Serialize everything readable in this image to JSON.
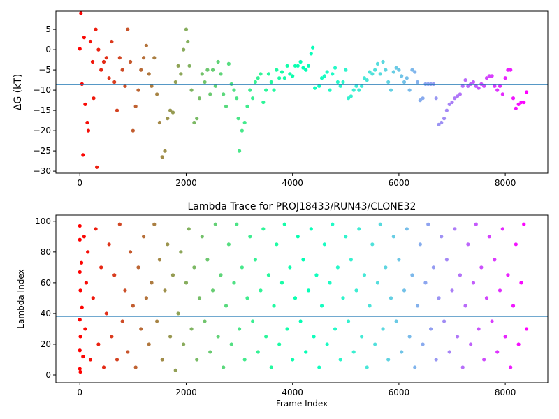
{
  "chart_data": [
    {
      "type": "scatter",
      "title": "",
      "xlabel": "",
      "ylabel": "ΔG (kT)",
      "xlim": [
        -450,
        8800
      ],
      "ylim": [
        -30.5,
        9.5
      ],
      "xticks": [
        0,
        2000,
        4000,
        6000,
        8000
      ],
      "yticks": [
        5,
        0,
        -5,
        -10,
        -15,
        -20,
        -25,
        -30
      ],
      "hline": -8.6,
      "hline_color": "#1f77b4",
      "colormap": "rainbow",
      "x_max": 8400,
      "points": [
        [
          0,
          0.2
        ],
        [
          20,
          9.0
        ],
        [
          40,
          -8.5
        ],
        [
          60,
          -26.0
        ],
        [
          80,
          3.0
        ],
        [
          100,
          -13.5
        ],
        [
          140,
          -18.0
        ],
        [
          160,
          -20.0
        ],
        [
          200,
          2.0
        ],
        [
          240,
          -3.0
        ],
        [
          260,
          -12.0
        ],
        [
          300,
          5.0
        ],
        [
          320,
          -29.0
        ],
        [
          350,
          0.0
        ],
        [
          400,
          -5.0
        ],
        [
          450,
          -3.0
        ],
        [
          500,
          -2.0
        ],
        [
          550,
          -7.0
        ],
        [
          600,
          2.0
        ],
        [
          650,
          -8.0
        ],
        [
          700,
          -15.0
        ],
        [
          750,
          -2.0
        ],
        [
          800,
          -5.0
        ],
        [
          850,
          -9.0
        ],
        [
          900,
          5.0
        ],
        [
          950,
          -3.0
        ],
        [
          1000,
          -20.0
        ],
        [
          1050,
          -14.0
        ],
        [
          1100,
          -10.0
        ],
        [
          1150,
          -5.0
        ],
        [
          1200,
          -2.0
        ],
        [
          1250,
          1.0
        ],
        [
          1300,
          -6.0
        ],
        [
          1350,
          -9.0
        ],
        [
          1400,
          -2.0
        ],
        [
          1450,
          -11.0
        ],
        [
          1500,
          -18.0
        ],
        [
          1550,
          -26.5
        ],
        [
          1600,
          -25.0
        ],
        [
          1650,
          -17.0
        ],
        [
          1700,
          -15.0
        ],
        [
          1750,
          -15.5
        ],
        [
          1800,
          -8.0
        ],
        [
          1850,
          -4.0
        ],
        [
          1900,
          -6.0
        ],
        [
          1950,
          0.0
        ],
        [
          2000,
          5.0
        ],
        [
          2030,
          2.0
        ],
        [
          2060,
          -4.0
        ],
        [
          2100,
          -10.0
        ],
        [
          2150,
          -18.0
        ],
        [
          2200,
          -17.0
        ],
        [
          2250,
          -12.0
        ],
        [
          2300,
          -6.0
        ],
        [
          2350,
          -8.0
        ],
        [
          2400,
          -5.0
        ],
        [
          2450,
          -11.0
        ],
        [
          2500,
          -5.0
        ],
        [
          2550,
          -9.0
        ],
        [
          2600,
          -3.0
        ],
        [
          2650,
          -6.0
        ],
        [
          2700,
          -11.0
        ],
        [
          2750,
          -14.0
        ],
        [
          2800,
          -3.5
        ],
        [
          2850,
          -8.5
        ],
        [
          2900,
          -10.0
        ],
        [
          2950,
          -12.0
        ],
        [
          2980,
          -17.0
        ],
        [
          3000,
          -25.0
        ],
        [
          3050,
          -20.0
        ],
        [
          3100,
          -18.0
        ],
        [
          3150,
          -14.0
        ],
        [
          3200,
          -10.0
        ],
        [
          3250,
          -12.0
        ],
        [
          3300,
          -8.0
        ],
        [
          3350,
          -7.0
        ],
        [
          3400,
          -6.0
        ],
        [
          3450,
          -13.0
        ],
        [
          3500,
          -10.0
        ],
        [
          3550,
          -6.0
        ],
        [
          3600,
          -8.0
        ],
        [
          3650,
          -10.0
        ],
        [
          3700,
          -5.0
        ],
        [
          3750,
          -7.0
        ],
        [
          3800,
          -5.5
        ],
        [
          3850,
          -7.0
        ],
        [
          3900,
          -4.0
        ],
        [
          3950,
          -6.0
        ],
        [
          4000,
          -6.5
        ],
        [
          4050,
          -4.0
        ],
        [
          4100,
          -4.0
        ],
        [
          4150,
          -3.0
        ],
        [
          4200,
          -4.5
        ],
        [
          4250,
          -5.0
        ],
        [
          4300,
          -4.0
        ],
        [
          4350,
          -1.0
        ],
        [
          4380,
          0.5
        ],
        [
          4420,
          -9.5
        ],
        [
          4500,
          -9.0
        ],
        [
          4550,
          -7.0
        ],
        [
          4600,
          -6.5
        ],
        [
          4650,
          -5.5
        ],
        [
          4700,
          -10.0
        ],
        [
          4750,
          -6.0
        ],
        [
          4800,
          -4.5
        ],
        [
          4850,
          -8.0
        ],
        [
          4900,
          -9.0
        ],
        [
          4950,
          -8.0
        ],
        [
          5000,
          -5.0
        ],
        [
          5050,
          -12.0
        ],
        [
          5100,
          -11.5
        ],
        [
          5150,
          -10.0
        ],
        [
          5200,
          -9.0
        ],
        [
          5250,
          -10.0
        ],
        [
          5300,
          -9.0
        ],
        [
          5350,
          -7.0
        ],
        [
          5400,
          -7.5
        ],
        [
          5450,
          -5.5
        ],
        [
          5500,
          -6.0
        ],
        [
          5550,
          -5.0
        ],
        [
          5600,
          -3.5
        ],
        [
          5650,
          -6.0
        ],
        [
          5700,
          -3.0
        ],
        [
          5750,
          -5.0
        ],
        [
          5800,
          -8.0
        ],
        [
          5850,
          -10.0
        ],
        [
          5900,
          -5.5
        ],
        [
          5950,
          -4.5
        ],
        [
          6000,
          -5.0
        ],
        [
          6050,
          -6.5
        ],
        [
          6100,
          -8.0
        ],
        [
          6150,
          -7.0
        ],
        [
          6200,
          -10.0
        ],
        [
          6250,
          -5.0
        ],
        [
          6300,
          -5.5
        ],
        [
          6350,
          -8.0
        ],
        [
          6400,
          -12.5
        ],
        [
          6450,
          -12.0
        ],
        [
          6500,
          -8.5
        ],
        [
          6550,
          -8.5
        ],
        [
          6600,
          -8.5
        ],
        [
          6650,
          -8.5
        ],
        [
          6700,
          -12.0
        ],
        [
          6750,
          -18.5
        ],
        [
          6800,
          -18.0
        ],
        [
          6850,
          -17.0
        ],
        [
          6900,
          -15.0
        ],
        [
          6950,
          -13.5
        ],
        [
          7000,
          -13.0
        ],
        [
          7050,
          -12.0
        ],
        [
          7100,
          -11.5
        ],
        [
          7150,
          -11.0
        ],
        [
          7200,
          -9.0
        ],
        [
          7250,
          -7.5
        ],
        [
          7300,
          -9.0
        ],
        [
          7350,
          -8.5
        ],
        [
          7400,
          -8.0
        ],
        [
          7450,
          -9.0
        ],
        [
          7500,
          -9.5
        ],
        [
          7550,
          -8.5
        ],
        [
          7600,
          -9.0
        ],
        [
          7650,
          -7.0
        ],
        [
          7700,
          -6.5
        ],
        [
          7750,
          -6.5
        ],
        [
          7800,
          -9.0
        ],
        [
          7850,
          -10.0
        ],
        [
          7900,
          -9.0
        ],
        [
          7950,
          -11.0
        ],
        [
          8000,
          -7.0
        ],
        [
          8050,
          -5.0
        ],
        [
          8100,
          -5.0
        ],
        [
          8150,
          -12.0
        ],
        [
          8200,
          -14.5
        ],
        [
          8250,
          -13.5
        ],
        [
          8300,
          -13.0
        ],
        [
          8350,
          -13.0
        ],
        [
          8400,
          -10.5
        ]
      ]
    },
    {
      "type": "scatter",
      "title": "Lambda Trace for PROJ18433/RUN43/CLONE32",
      "xlabel": "Frame Index",
      "ylabel": "Lambda Index",
      "xlim": [
        -450,
        8800
      ],
      "ylim": [
        -5,
        104
      ],
      "xticks": [
        0,
        2000,
        4000,
        6000,
        8000
      ],
      "yticks": [
        100,
        80,
        60,
        40,
        20,
        0
      ],
      "hline": 38.2,
      "hline_color": "#1f77b4",
      "colormap": "rainbow",
      "x_max": 8400,
      "points": [
        [
          0,
          4
        ],
        [
          0,
          16
        ],
        [
          0,
          36
        ],
        [
          0,
          67
        ],
        [
          0,
          88
        ],
        [
          0,
          97
        ],
        [
          10,
          2
        ],
        [
          10,
          55
        ],
        [
          10,
          25
        ],
        [
          30,
          73
        ],
        [
          40,
          44
        ],
        [
          60,
          12
        ],
        [
          80,
          90
        ],
        [
          100,
          30
        ],
        [
          120,
          60
        ],
        [
          150,
          80
        ],
        [
          200,
          10
        ],
        [
          250,
          50
        ],
        [
          300,
          95
        ],
        [
          350,
          20
        ],
        [
          400,
          70
        ],
        [
          450,
          5
        ],
        [
          500,
          40
        ],
        [
          550,
          85
        ],
        [
          600,
          25
        ],
        [
          650,
          65
        ],
        [
          700,
          10
        ],
        [
          750,
          98
        ],
        [
          800,
          35
        ],
        [
          850,
          55
        ],
        [
          900,
          15
        ],
        [
          950,
          80
        ],
        [
          1000,
          45
        ],
        [
          1050,
          5
        ],
        [
          1100,
          70
        ],
        [
          1150,
          30
        ],
        [
          1200,
          90
        ],
        [
          1250,
          50
        ],
        [
          1300,
          20
        ],
        [
          1350,
          60
        ],
        [
          1400,
          98
        ],
        [
          1450,
          35
        ],
        [
          1500,
          75
        ],
        [
          1550,
          10
        ],
        [
          1600,
          55
        ],
        [
          1650,
          85
        ],
        [
          1700,
          25
        ],
        [
          1750,
          65
        ],
        [
          1800,
          3
        ],
        [
          1850,
          40
        ],
        [
          1900,
          80
        ],
        [
          1950,
          20
        ],
        [
          2000,
          60
        ],
        [
          2050,
          95
        ],
        [
          2100,
          30
        ],
        [
          2150,
          70
        ],
        [
          2200,
          10
        ],
        [
          2250,
          50
        ],
        [
          2300,
          90
        ],
        [
          2350,
          35
        ],
        [
          2400,
          75
        ],
        [
          2450,
          15
        ],
        [
          2500,
          55
        ],
        [
          2550,
          98
        ],
        [
          2600,
          25
        ],
        [
          2650,
          65
        ],
        [
          2700,
          5
        ],
        [
          2750,
          45
        ],
        [
          2800,
          85
        ],
        [
          2850,
          20
        ],
        [
          2900,
          60
        ],
        [
          2950,
          98
        ],
        [
          3000,
          30
        ],
        [
          3050,
          70
        ],
        [
          3100,
          10
        ],
        [
          3150,
          50
        ],
        [
          3200,
          90
        ],
        [
          3250,
          35
        ],
        [
          3300,
          75
        ],
        [
          3350,
          15
        ],
        [
          3400,
          55
        ],
        [
          3450,
          95
        ],
        [
          3500,
          25
        ],
        [
          3550,
          65
        ],
        [
          3600,
          5
        ],
        [
          3650,
          45
        ],
        [
          3700,
          85
        ],
        [
          3750,
          20
        ],
        [
          3800,
          60
        ],
        [
          3850,
          98
        ],
        [
          3900,
          30
        ],
        [
          3950,
          70
        ],
        [
          4000,
          10
        ],
        [
          4050,
          50
        ],
        [
          4100,
          90
        ],
        [
          4150,
          35
        ],
        [
          4200,
          75
        ],
        [
          4250,
          15
        ],
        [
          4300,
          55
        ],
        [
          4350,
          95
        ],
        [
          4400,
          25
        ],
        [
          4450,
          65
        ],
        [
          4500,
          5
        ],
        [
          4550,
          45
        ],
        [
          4600,
          85
        ],
        [
          4650,
          20
        ],
        [
          4700,
          60
        ],
        [
          4750,
          98
        ],
        [
          4800,
          30
        ],
        [
          4850,
          70
        ],
        [
          4900,
          10
        ],
        [
          4950,
          50
        ],
        [
          5000,
          90
        ],
        [
          5050,
          35
        ],
        [
          5100,
          75
        ],
        [
          5150,
          15
        ],
        [
          5200,
          55
        ],
        [
          5250,
          95
        ],
        [
          5300,
          25
        ],
        [
          5350,
          65
        ],
        [
          5400,
          5
        ],
        [
          5450,
          45
        ],
        [
          5500,
          85
        ],
        [
          5550,
          20
        ],
        [
          5600,
          60
        ],
        [
          5650,
          98
        ],
        [
          5700,
          30
        ],
        [
          5750,
          70
        ],
        [
          5800,
          10
        ],
        [
          5850,
          50
        ],
        [
          5900,
          90
        ],
        [
          5950,
          35
        ],
        [
          6000,
          75
        ],
        [
          6050,
          15
        ],
        [
          6100,
          55
        ],
        [
          6150,
          95
        ],
        [
          6200,
          25
        ],
        [
          6250,
          65
        ],
        [
          6300,
          5
        ],
        [
          6350,
          45
        ],
        [
          6400,
          85
        ],
        [
          6450,
          20
        ],
        [
          6500,
          60
        ],
        [
          6550,
          98
        ],
        [
          6600,
          30
        ],
        [
          6650,
          70
        ],
        [
          6700,
          10
        ],
        [
          6750,
          50
        ],
        [
          6800,
          90
        ],
        [
          6850,
          35
        ],
        [
          6900,
          75
        ],
        [
          6950,
          15
        ],
        [
          7000,
          55
        ],
        [
          7050,
          95
        ],
        [
          7100,
          25
        ],
        [
          7150,
          65
        ],
        [
          7200,
          5
        ],
        [
          7250,
          45
        ],
        [
          7300,
          85
        ],
        [
          7350,
          20
        ],
        [
          7400,
          60
        ],
        [
          7450,
          98
        ],
        [
          7500,
          30
        ],
        [
          7550,
          70
        ],
        [
          7600,
          10
        ],
        [
          7650,
          50
        ],
        [
          7700,
          90
        ],
        [
          7750,
          35
        ],
        [
          7800,
          75
        ],
        [
          7850,
          15
        ],
        [
          7900,
          55
        ],
        [
          7950,
          95
        ],
        [
          8000,
          25
        ],
        [
          8050,
          65
        ],
        [
          8100,
          5
        ],
        [
          8150,
          45
        ],
        [
          8200,
          85
        ],
        [
          8250,
          20
        ],
        [
          8300,
          60
        ],
        [
          8350,
          98
        ],
        [
          8400,
          30
        ]
      ]
    }
  ]
}
